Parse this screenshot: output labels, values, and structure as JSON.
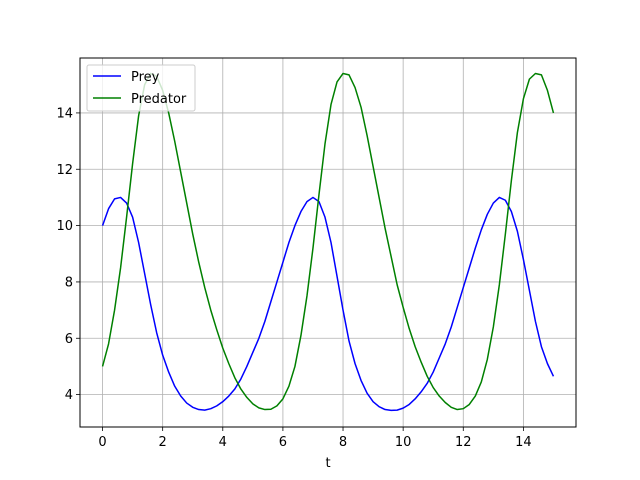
{
  "chart_data": {
    "type": "line",
    "title": "",
    "xlabel": "t",
    "ylabel": "",
    "xlim": [
      -0.75,
      15.75
    ],
    "ylim": [
      2.85,
      15.95
    ],
    "xticks": [
      0,
      2,
      4,
      6,
      8,
      10,
      12,
      14
    ],
    "yticks": [
      4,
      6,
      8,
      10,
      12,
      14
    ],
    "grid": true,
    "legend_position": "top-left",
    "series": [
      {
        "name": "Prey",
        "color": "#0000ff",
        "points": [
          [
            0.0,
            10.0
          ],
          [
            0.2,
            10.6
          ],
          [
            0.4,
            10.95
          ],
          [
            0.6,
            11.0
          ],
          [
            0.8,
            10.8
          ],
          [
            1.0,
            10.3
          ],
          [
            1.2,
            9.4
          ],
          [
            1.4,
            8.3
          ],
          [
            1.6,
            7.2
          ],
          [
            1.8,
            6.2
          ],
          [
            2.0,
            5.4
          ],
          [
            2.2,
            4.8
          ],
          [
            2.4,
            4.3
          ],
          [
            2.6,
            3.95
          ],
          [
            2.8,
            3.7
          ],
          [
            3.0,
            3.55
          ],
          [
            3.2,
            3.47
          ],
          [
            3.4,
            3.45
          ],
          [
            3.6,
            3.5
          ],
          [
            3.8,
            3.6
          ],
          [
            4.0,
            3.75
          ],
          [
            4.2,
            3.95
          ],
          [
            4.4,
            4.2
          ],
          [
            4.6,
            4.55
          ],
          [
            4.8,
            5.0
          ],
          [
            5.0,
            5.5
          ],
          [
            5.2,
            6.0
          ],
          [
            5.4,
            6.6
          ],
          [
            5.6,
            7.3
          ],
          [
            5.8,
            8.0
          ],
          [
            6.0,
            8.7
          ],
          [
            6.2,
            9.4
          ],
          [
            6.4,
            10.0
          ],
          [
            6.6,
            10.5
          ],
          [
            6.8,
            10.85
          ],
          [
            7.0,
            11.0
          ],
          [
            7.2,
            10.85
          ],
          [
            7.4,
            10.3
          ],
          [
            7.6,
            9.4
          ],
          [
            7.8,
            8.2
          ],
          [
            8.0,
            7.0
          ],
          [
            8.2,
            5.9
          ],
          [
            8.4,
            5.1
          ],
          [
            8.6,
            4.5
          ],
          [
            8.8,
            4.05
          ],
          [
            9.0,
            3.75
          ],
          [
            9.2,
            3.57
          ],
          [
            9.4,
            3.47
          ],
          [
            9.6,
            3.44
          ],
          [
            9.8,
            3.45
          ],
          [
            10.0,
            3.52
          ],
          [
            10.2,
            3.65
          ],
          [
            10.4,
            3.85
          ],
          [
            10.6,
            4.1
          ],
          [
            10.8,
            4.4
          ],
          [
            11.0,
            4.8
          ],
          [
            11.2,
            5.3
          ],
          [
            11.4,
            5.8
          ],
          [
            11.6,
            6.4
          ],
          [
            11.8,
            7.1
          ],
          [
            12.0,
            7.8
          ],
          [
            12.2,
            8.5
          ],
          [
            12.4,
            9.2
          ],
          [
            12.6,
            9.85
          ],
          [
            12.8,
            10.4
          ],
          [
            13.0,
            10.8
          ],
          [
            13.2,
            11.0
          ],
          [
            13.4,
            10.9
          ],
          [
            13.6,
            10.5
          ],
          [
            13.8,
            9.8
          ],
          [
            14.0,
            8.8
          ],
          [
            14.2,
            7.7
          ],
          [
            14.4,
            6.6
          ],
          [
            14.6,
            5.7
          ],
          [
            14.8,
            5.1
          ],
          [
            15.0,
            4.65
          ]
        ]
      },
      {
        "name": "Predator",
        "color": "#008000",
        "points": [
          [
            0.0,
            5.0
          ],
          [
            0.2,
            5.8
          ],
          [
            0.4,
            7.0
          ],
          [
            0.6,
            8.5
          ],
          [
            0.8,
            10.3
          ],
          [
            1.0,
            12.2
          ],
          [
            1.2,
            13.9
          ],
          [
            1.4,
            15.0
          ],
          [
            1.6,
            15.4
          ],
          [
            1.8,
            15.3
          ],
          [
            2.0,
            14.8
          ],
          [
            2.2,
            14.0
          ],
          [
            2.4,
            13.0
          ],
          [
            2.6,
            11.9
          ],
          [
            2.8,
            10.8
          ],
          [
            3.0,
            9.7
          ],
          [
            3.2,
            8.7
          ],
          [
            3.4,
            7.8
          ],
          [
            3.6,
            7.0
          ],
          [
            3.8,
            6.3
          ],
          [
            4.0,
            5.65
          ],
          [
            4.2,
            5.1
          ],
          [
            4.4,
            4.6
          ],
          [
            4.6,
            4.2
          ],
          [
            4.8,
            3.9
          ],
          [
            5.0,
            3.67
          ],
          [
            5.2,
            3.53
          ],
          [
            5.4,
            3.47
          ],
          [
            5.6,
            3.48
          ],
          [
            5.8,
            3.6
          ],
          [
            6.0,
            3.85
          ],
          [
            6.2,
            4.3
          ],
          [
            6.4,
            5.0
          ],
          [
            6.6,
            6.1
          ],
          [
            6.8,
            7.5
          ],
          [
            7.0,
            9.2
          ],
          [
            7.2,
            11.1
          ],
          [
            7.4,
            12.9
          ],
          [
            7.6,
            14.3
          ],
          [
            7.8,
            15.1
          ],
          [
            8.0,
            15.4
          ],
          [
            8.2,
            15.35
          ],
          [
            8.4,
            14.9
          ],
          [
            8.6,
            14.2
          ],
          [
            8.8,
            13.2
          ],
          [
            9.0,
            12.1
          ],
          [
            9.2,
            11.0
          ],
          [
            9.4,
            9.9
          ],
          [
            9.6,
            8.9
          ],
          [
            9.8,
            7.9
          ],
          [
            10.0,
            7.1
          ],
          [
            10.2,
            6.35
          ],
          [
            10.4,
            5.7
          ],
          [
            10.6,
            5.15
          ],
          [
            10.8,
            4.65
          ],
          [
            11.0,
            4.25
          ],
          [
            11.2,
            3.95
          ],
          [
            11.4,
            3.72
          ],
          [
            11.6,
            3.55
          ],
          [
            11.8,
            3.47
          ],
          [
            12.0,
            3.5
          ],
          [
            12.2,
            3.65
          ],
          [
            12.4,
            3.95
          ],
          [
            12.6,
            4.45
          ],
          [
            12.8,
            5.25
          ],
          [
            13.0,
            6.4
          ],
          [
            13.2,
            7.9
          ],
          [
            13.4,
            9.7
          ],
          [
            13.6,
            11.6
          ],
          [
            13.8,
            13.3
          ],
          [
            14.0,
            14.5
          ],
          [
            14.2,
            15.2
          ],
          [
            14.4,
            15.4
          ],
          [
            14.6,
            15.35
          ],
          [
            14.8,
            14.8
          ],
          [
            15.0,
            14.0
          ]
        ]
      }
    ]
  }
}
